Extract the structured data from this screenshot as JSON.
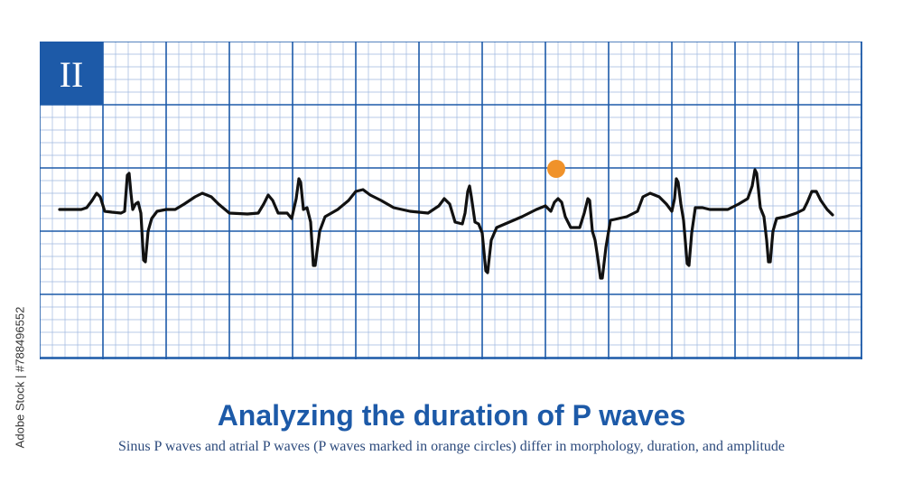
{
  "lead_label": "II",
  "title": "Analyzing the duration of P waves",
  "subtitle": "Sinus P waves and atrial P waves (P waves marked in orange circles) differ in morphology, duration, and amplitude",
  "stock_id": "Adobe Stock | #788496552",
  "colors": {
    "grid_major": "#1d5aa8",
    "grid_minor": "#9fb8df",
    "trace": "#111111",
    "marker": "#f0922a",
    "label_bg": "#1d5aa8",
    "title": "#1d5aa8"
  },
  "ecg_markers": [
    {
      "name": "atrial-p-wave-marker",
      "beat": 7
    }
  ]
}
